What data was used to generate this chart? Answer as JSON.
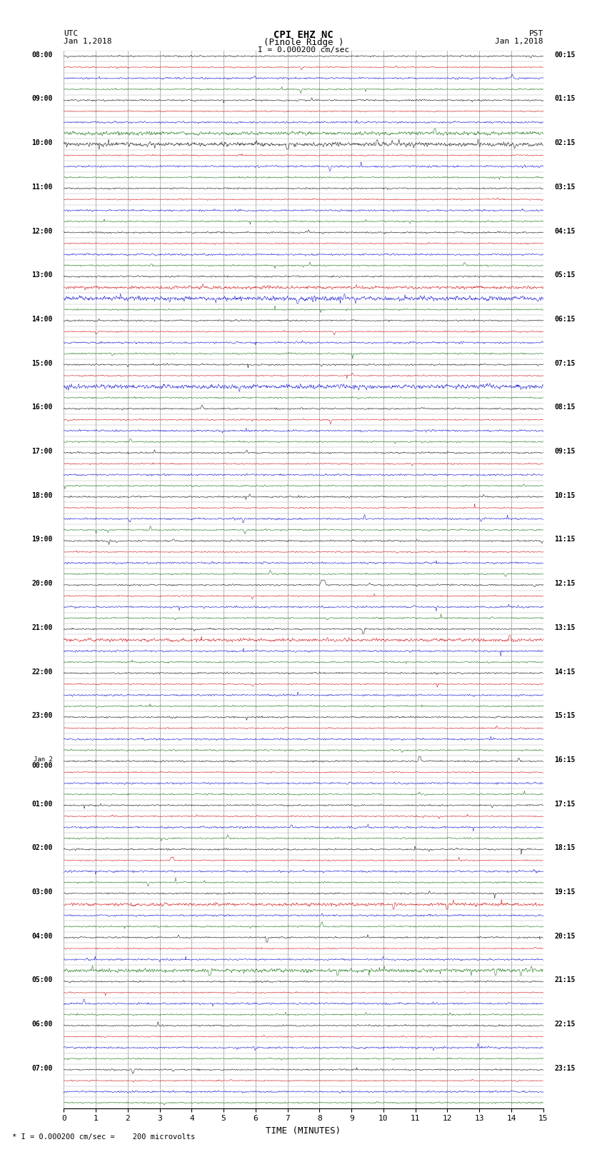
{
  "title_line1": "CPI EHZ NC",
  "title_line2": "(Pinole Ridge )",
  "scale_label": "I = 0.000200 cm/sec",
  "footer_label": "* I = 0.000200 cm/sec =    200 microvolts",
  "xlabel": "TIME (MINUTES)",
  "xlim": [
    0,
    15
  ],
  "xticks": [
    0,
    1,
    2,
    3,
    4,
    5,
    6,
    7,
    8,
    9,
    10,
    11,
    12,
    13,
    14,
    15
  ],
  "bg_color": "#ffffff",
  "trace_colors": [
    "#000000",
    "#cc0000",
    "#0000cc",
    "#006600"
  ],
  "grid_color": "#aaaaaa",
  "left_times_utc": [
    "08:00",
    "09:00",
    "10:00",
    "11:00",
    "12:00",
    "13:00",
    "14:00",
    "15:00",
    "16:00",
    "17:00",
    "18:00",
    "19:00",
    "20:00",
    "21:00",
    "22:00",
    "23:00",
    "Jan 2\n00:00",
    "01:00",
    "02:00",
    "03:00",
    "04:00",
    "05:00",
    "06:00",
    "07:00"
  ],
  "right_times_pst": [
    "00:15",
    "01:15",
    "02:15",
    "03:15",
    "04:15",
    "05:15",
    "06:15",
    "07:15",
    "08:15",
    "09:15",
    "10:15",
    "11:15",
    "12:15",
    "13:15",
    "14:15",
    "15:15",
    "16:15",
    "17:15",
    "18:15",
    "19:15",
    "20:15",
    "21:15",
    "22:15",
    "23:15"
  ]
}
